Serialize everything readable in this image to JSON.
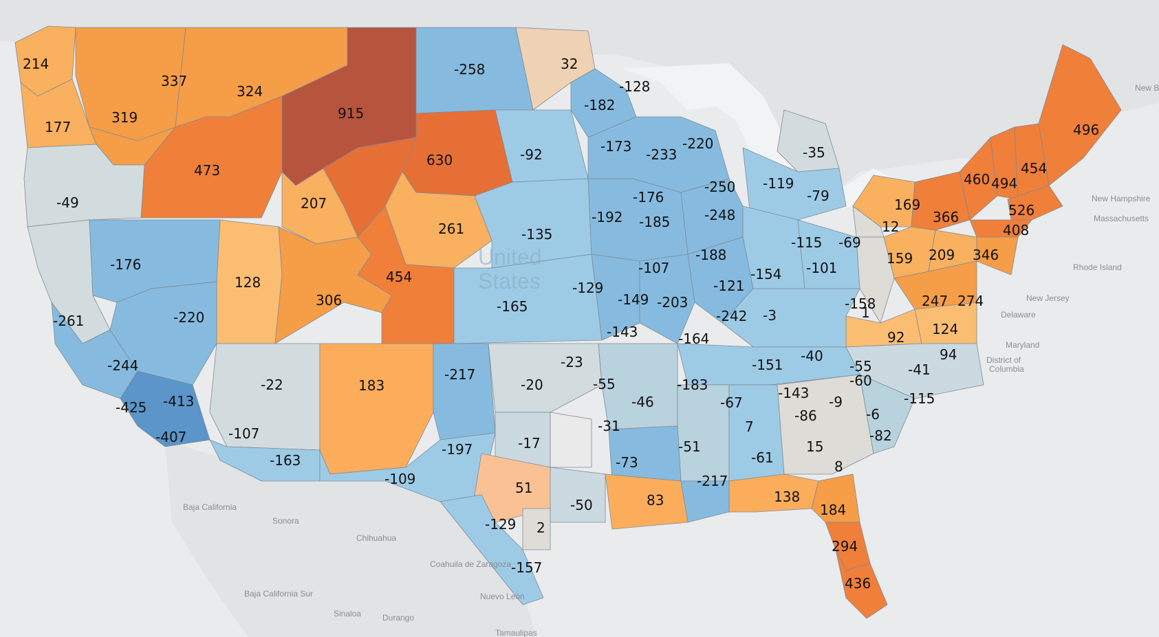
{
  "colors": {
    "background": "#eaebed",
    "land_outside": "#e3e4e6",
    "water": "#f4f5f6",
    "scale_neg_strong": "#5b95c9",
    "scale_neg": "#86bbdf",
    "scale_neutral": "#d2dcde",
    "scale_pos": "#f6a352",
    "scale_pos_strong": "#b7543e"
  },
  "map_labels": {
    "country": "United States",
    "country_l1": "United",
    "country_l2": "States",
    "new_brunswick": "New Brunswick",
    "new_hampshire": "New Hampshire",
    "massachusetts": "Massachusetts",
    "rhode_island": "Rhode Island",
    "new_jersey": "New Jersey",
    "delaware": "Delaware",
    "maryland": "Maryland",
    "district_of_columbia_l1": "District of",
    "district_of_columbia_l2": "Columbia",
    "baja_california": "Baja California",
    "sonora": "Sonora",
    "chihuahua": "Chihuahua",
    "coahuila": "Coahuila de Zaragoza",
    "nuevo_leon": "Nuevo León",
    "baja_california_sur": "Baja California Sur",
    "sinaloa": "Sinaloa",
    "durango": "Durango",
    "tamaulipas": "Tamaulipas"
  },
  "region_values": [
    214,
    337,
    324,
    915,
    -258,
    32,
    -128,
    -182,
    177,
    319,
    473,
    630,
    -92,
    -173,
    -233,
    -220,
    -35,
    -49,
    207,
    261,
    -135,
    -192,
    -176,
    -185,
    -250,
    -248,
    -119,
    -79,
    169,
    12,
    366,
    460,
    494,
    454,
    496,
    526,
    408,
    -176,
    128,
    306,
    454,
    -165,
    -129,
    -107,
    -149,
    -188,
    -121,
    -203,
    -242,
    -3,
    -154,
    -115,
    -101,
    -69,
    159,
    209,
    346,
    247,
    274,
    1,
    -158,
    92,
    124,
    94,
    -261,
    -220,
    -244,
    -425,
    -413,
    -407,
    -143,
    -164,
    -40,
    -55,
    -60,
    -41,
    -22,
    183,
    -217,
    -20,
    -23,
    -55,
    -46,
    -183,
    -67,
    -151,
    -143,
    -9,
    -6,
    -115,
    -107,
    -163,
    -197,
    -17,
    -31,
    -73,
    -51,
    -61,
    -86,
    7,
    15,
    -82,
    8,
    -109,
    51,
    -50,
    83,
    -217,
    138,
    184,
    -129,
    2,
    -157,
    294,
    436
  ]
}
